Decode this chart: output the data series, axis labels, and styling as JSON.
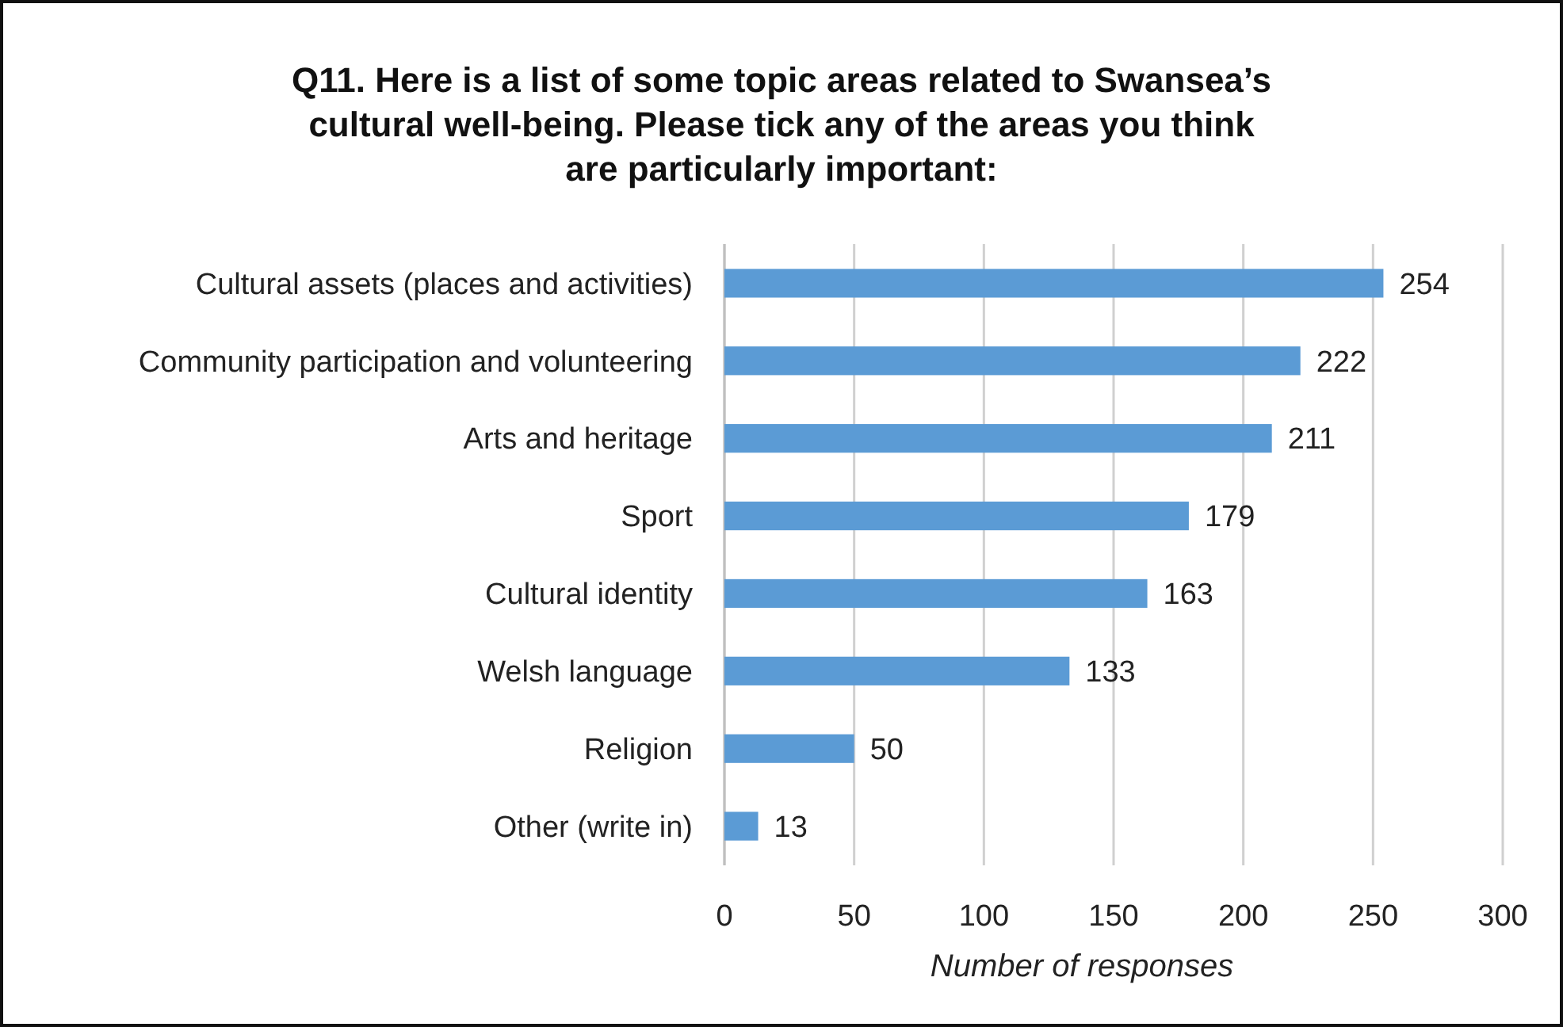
{
  "chart_data": {
    "type": "bar",
    "orientation": "horizontal",
    "title": "Q11. Here is a list of some topic areas related to Swansea’s\ncultural well-being. Please tick any of the areas you think\nare particularly important:",
    "xlabel": "Number of responses",
    "categories": [
      "Cultural assets (places and activities)",
      "Community participation and volunteering",
      "Arts and heritage",
      "Sport",
      "Cultural identity",
      "Welsh language",
      "Religion",
      "Other (write in)"
    ],
    "values": [
      254,
      222,
      211,
      179,
      163,
      133,
      50,
      13
    ],
    "color": "#5b9bd5",
    "xlim": [
      0,
      300
    ],
    "xticks": [
      0,
      50,
      100,
      150,
      200,
      250,
      300
    ],
    "grid": "x",
    "data_labels": true
  }
}
